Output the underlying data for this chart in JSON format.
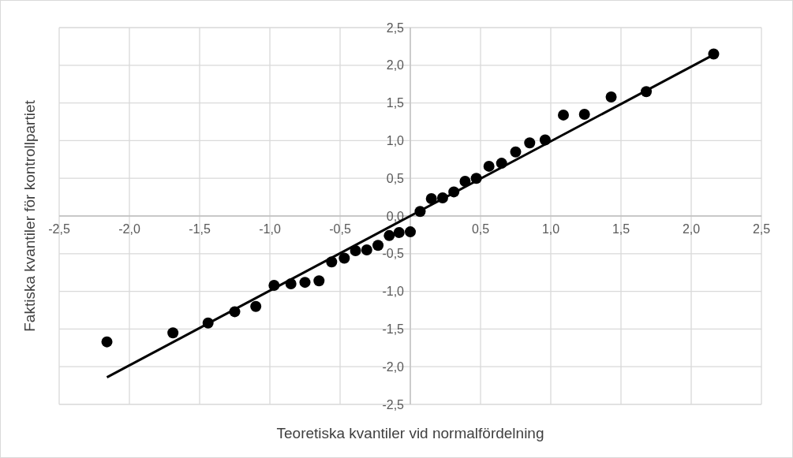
{
  "chart_data": {
    "type": "scatter",
    "xlabel": "Teoretiska kvantiler vid normalfördelning",
    "ylabel": "Faktiska kvantiler för kontrollpartiet",
    "xlim": [
      -2.5,
      2.5
    ],
    "ylim": [
      -2.5,
      2.5
    ],
    "xticks": [
      {
        "value": -2.5,
        "label": "-2,5"
      },
      {
        "value": -2,
        "label": "-2,0"
      },
      {
        "value": -1.5,
        "label": "-1,5"
      },
      {
        "value": -1,
        "label": "-1,0"
      },
      {
        "value": -0.5,
        "label": "-0,5"
      },
      {
        "value": 0,
        "label": null
      },
      {
        "value": 0.5,
        "label": "0,5"
      },
      {
        "value": 1,
        "label": "1,0"
      },
      {
        "value": 1.5,
        "label": "1,5"
      },
      {
        "value": 2,
        "label": "2,0"
      },
      {
        "value": 2.5,
        "label": "2,5"
      }
    ],
    "yticks": [
      {
        "value": -2.5,
        "label": "-2,5"
      },
      {
        "value": -2,
        "label": "-2,0"
      },
      {
        "value": -1.5,
        "label": "-1,5"
      },
      {
        "value": -1,
        "label": "-1,0"
      },
      {
        "value": -0.5,
        "label": "-0,5"
      },
      {
        "value": 0,
        "label": "0,0"
      },
      {
        "value": 0.5,
        "label": "0,5"
      },
      {
        "value": 1,
        "label": "1,0"
      },
      {
        "value": 1.5,
        "label": "1,5"
      },
      {
        "value": 2,
        "label": "2,0"
      },
      {
        "value": 2.5,
        "label": "2,5"
      }
    ],
    "grid": true,
    "marker": "circle",
    "series": [
      {
        "type": "scatter",
        "color": "#000000",
        "x": [
          -2.16,
          -1.69,
          -1.44,
          -1.25,
          -1.1,
          -0.97,
          -0.85,
          -0.75,
          -0.65,
          -0.56,
          -0.47,
          -0.39,
          -0.31,
          -0.23,
          -0.15,
          -0.08,
          0,
          0.07,
          0.15,
          0.23,
          0.31,
          0.39,
          0.47,
          0.56,
          0.65,
          0.75,
          0.85,
          0.96,
          1.09,
          1.24,
          1.43,
          1.68,
          2.16
        ],
        "values": [
          -1.67,
          -1.55,
          -1.42,
          -1.27,
          -1.2,
          -0.92,
          -0.9,
          -0.88,
          -0.86,
          -0.61,
          -0.56,
          -0.46,
          -0.45,
          -0.39,
          -0.26,
          -0.22,
          -0.21,
          0.06,
          0.23,
          0.24,
          0.32,
          0.46,
          0.5,
          0.66,
          0.7,
          0.85,
          0.97,
          1.01,
          1.34,
          1.35,
          1.58,
          1.65,
          2.15
        ]
      },
      {
        "type": "line",
        "color": "#000000",
        "marker": "none",
        "line_style": "solid",
        "x": [
          -2.16,
          2.16
        ],
        "values": [
          -2.14,
          2.14
        ]
      }
    ]
  }
}
